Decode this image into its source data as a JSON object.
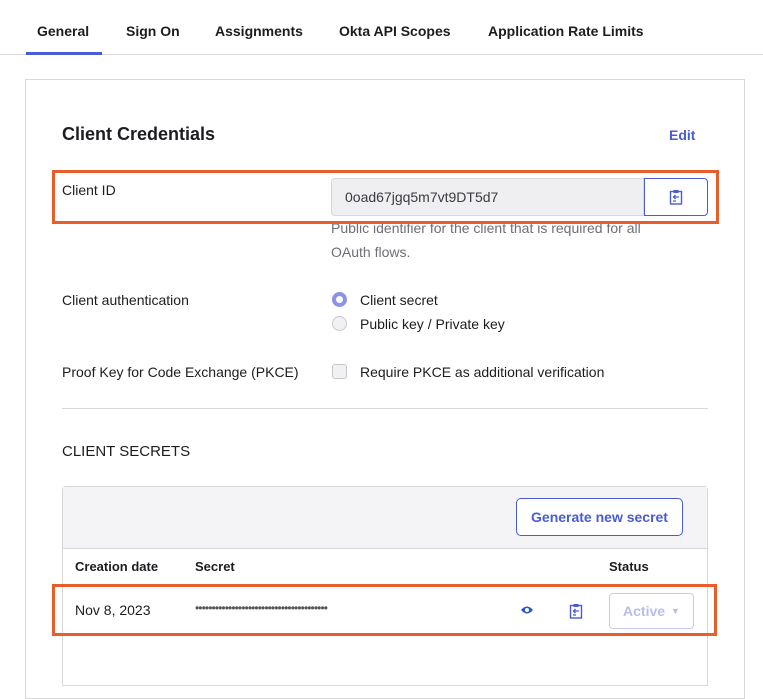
{
  "tabs": [
    {
      "label": "General",
      "active": true
    },
    {
      "label": "Sign On"
    },
    {
      "label": "Assignments"
    },
    {
      "label": "Okta API Scopes"
    },
    {
      "label": "Application Rate Limits"
    }
  ],
  "credentials": {
    "title": "Client Credentials",
    "edit_label": "Edit",
    "client_id_label": "Client ID",
    "client_id_value": "0oad67jgq5m7vt9DT5d7",
    "client_id_help": "Public identifier for the client that is required for all OAuth flows.",
    "copy_icon": "clipboard-icon",
    "auth_label": "Client authentication",
    "auth_options": [
      {
        "label": "Client secret",
        "selected": true
      },
      {
        "label": "Public key / Private key",
        "selected": false
      }
    ],
    "pkce_label": "Proof Key for Code Exchange (PKCE)",
    "pkce_option": "Require PKCE as additional verification",
    "pkce_checked": false
  },
  "secrets": {
    "title": "CLIENT SECRETS",
    "generate_label": "Generate new secret",
    "columns": [
      "Creation date",
      "Secret",
      "Status"
    ],
    "rows": [
      {
        "date": "Nov 8, 2023",
        "secret": "••••••••••••••••••••••••••••••••••••••••",
        "status": "Active"
      }
    ]
  },
  "colors": {
    "accent": "#4a5bd6",
    "highlight": "#e95d2a"
  }
}
